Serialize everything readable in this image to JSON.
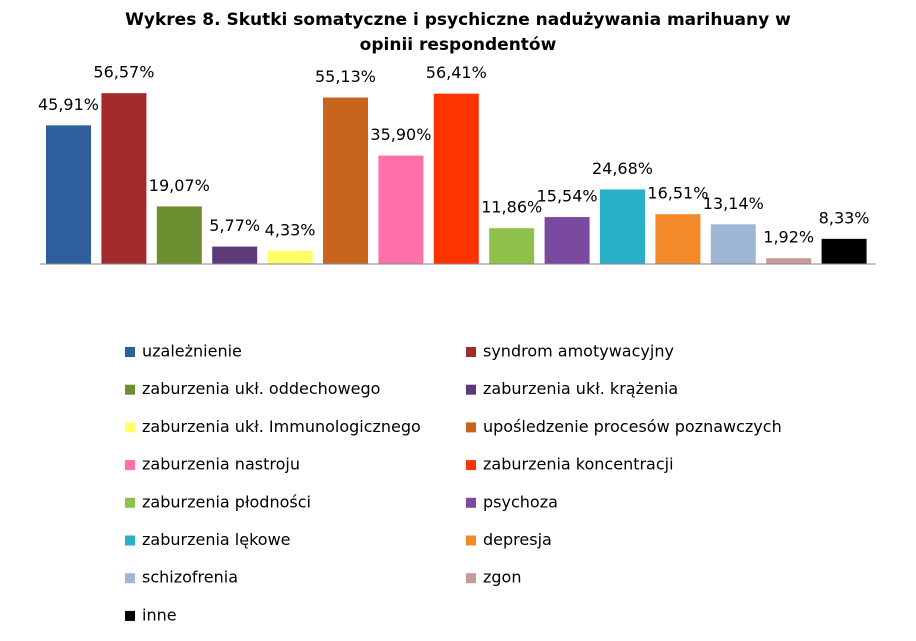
{
  "chart_data": {
    "type": "bar",
    "title": "Wykres 8. Skutki somatyczne i psychiczne nadużywania marihuany w opinii respondentów",
    "categories": [
      "uzależnienie",
      "syndrom amotywacyjny",
      "zaburzenia ukł. oddechowego",
      "zaburzenia ukł. krążenia",
      "zaburzenia ukł. Immunologicznego",
      "upośledzenie procesów poznawczych",
      "zaburzenia nastroju",
      "zaburzenia koncentracji",
      "zaburzenia płodności",
      "psychoza",
      "zaburzenia lękowe",
      "depresja",
      "schizofrenia",
      "zgon",
      "inne"
    ],
    "values": [
      45.91,
      56.57,
      19.07,
      5.77,
      4.33,
      55.13,
      35.9,
      56.41,
      11.86,
      15.54,
      24.68,
      16.51,
      13.14,
      1.92,
      8.33
    ],
    "value_labels": [
      "45,91%",
      "56,57%",
      "19,07%",
      "5,77%",
      "4,33%",
      "55,13%",
      "35,90%",
      "56,41%",
      "11,86%",
      "15,54%",
      "24,68%",
      "16,51%",
      "13,14%",
      "1,92%",
      "8,33%"
    ],
    "colors": [
      "#2e5f9c",
      "#a32b2b",
      "#6d8f2f",
      "#5b3b7a",
      "#ffff66",
      "#c8641c",
      "#ff6fa8",
      "#ff3300",
      "#8fc04a",
      "#7a4aa0",
      "#2aafc9",
      "#f28a2a",
      "#9fb5d6",
      "#c99a9a",
      "#000000"
    ],
    "legend": "bottom"
  }
}
